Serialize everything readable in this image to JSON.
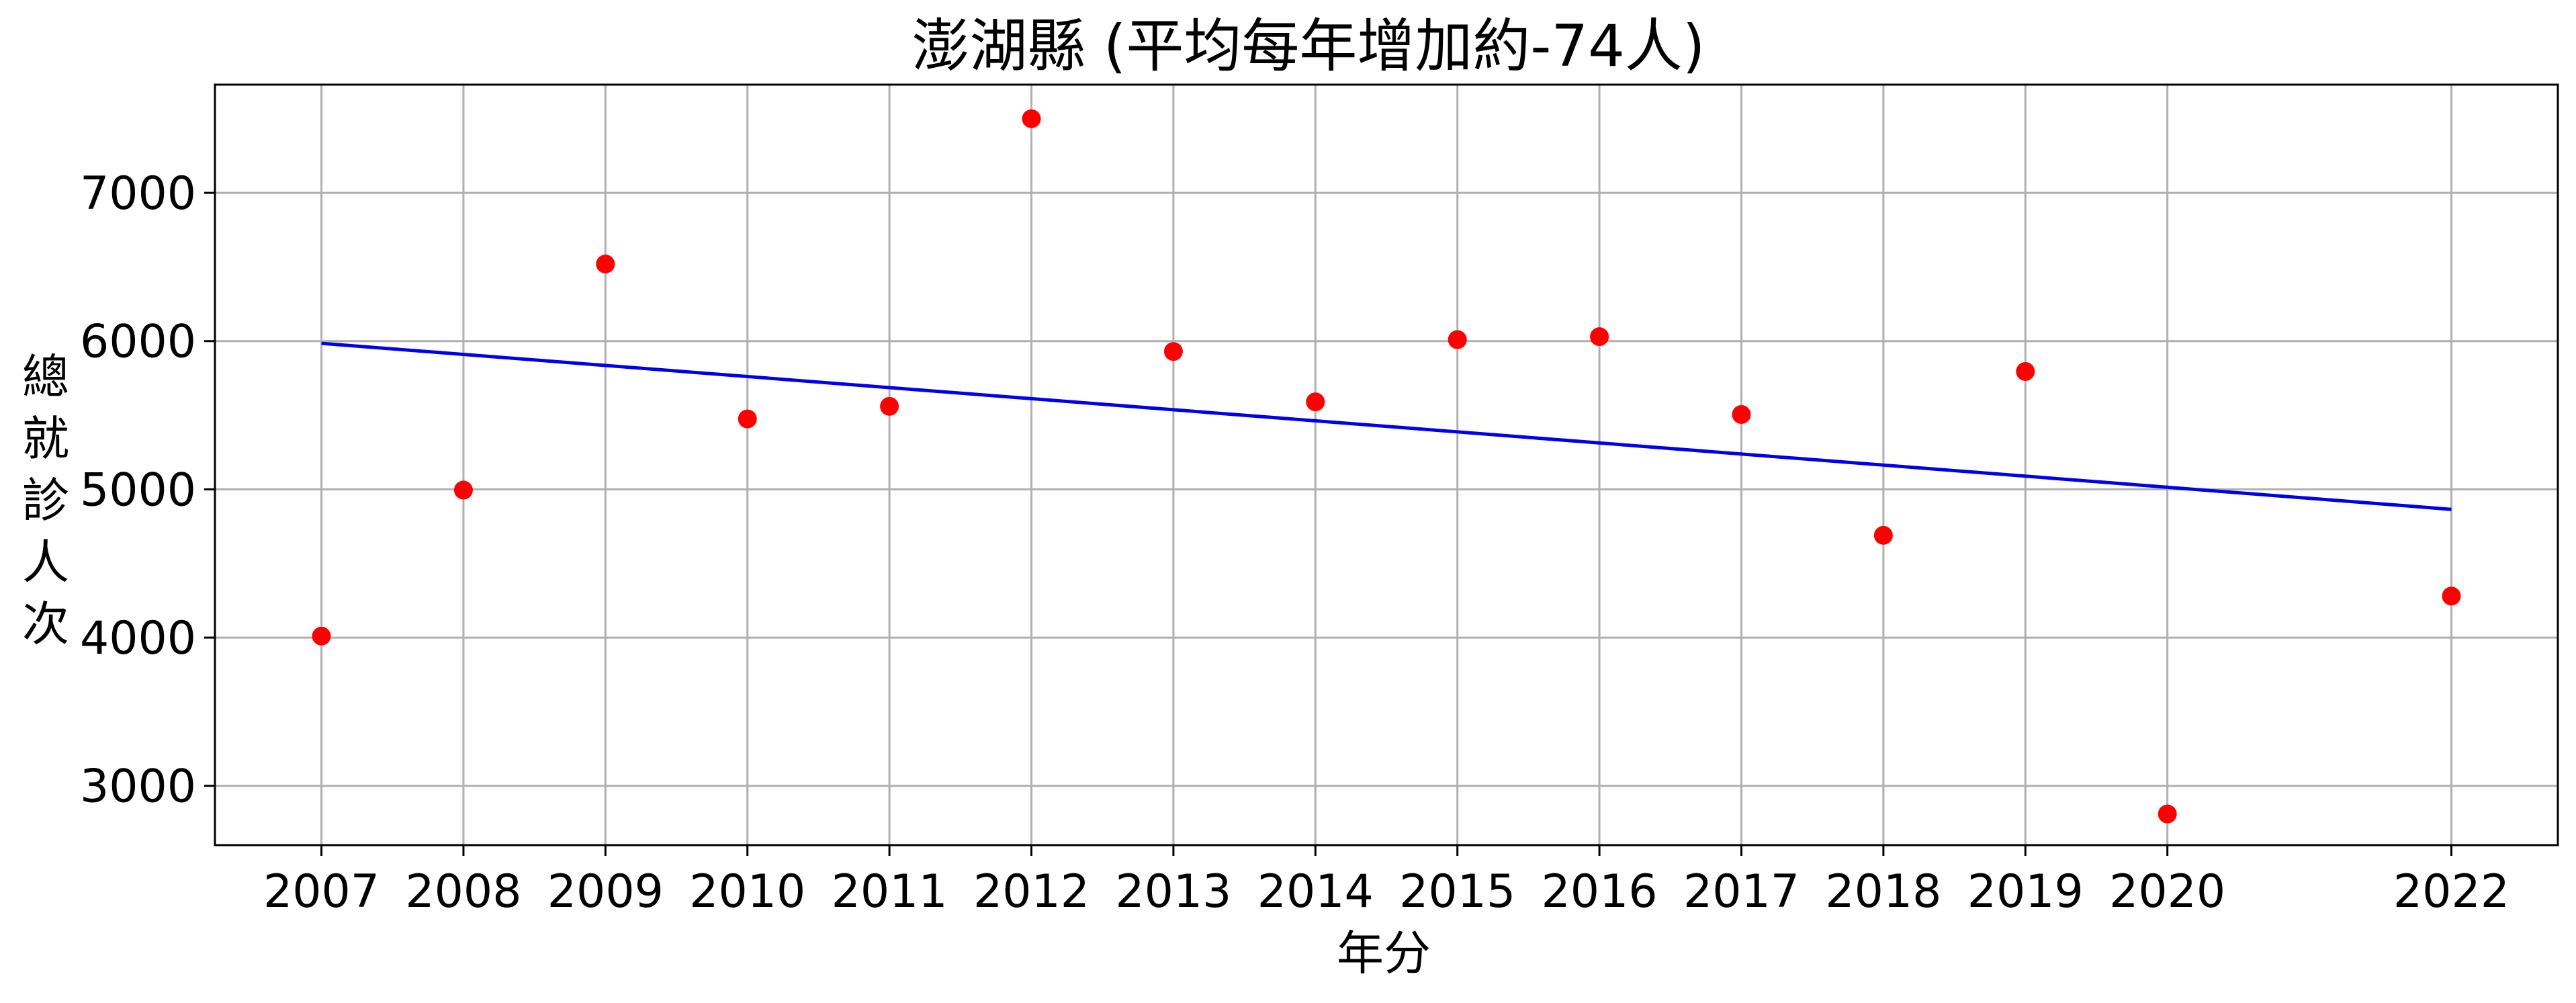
{
  "chart_data": {
    "type": "scatter",
    "title": "澎湖縣 (平均每年增加約-74人)",
    "xlabel": "年分",
    "ylabel": "總就診人次",
    "x": [
      2007,
      2008,
      2009,
      2010,
      2011,
      2012,
      2013,
      2014,
      2015,
      2016,
      2017,
      2018,
      2019,
      2020,
      2022
    ],
    "y": [
      4010,
      4995,
      6520,
      5475,
      5560,
      7500,
      5930,
      5590,
      6010,
      6030,
      5505,
      4690,
      5795,
      2810,
      4280
    ],
    "xticks": [
      "2007",
      "2008",
      "2009",
      "2010",
      "2011",
      "2012",
      "2013",
      "2014",
      "2015",
      "2016",
      "2017",
      "2018",
      "2019",
      "2020",
      "2022"
    ],
    "yticks": [
      "3000",
      "4000",
      "5000",
      "6000",
      "7000"
    ],
    "xlim": [
      2006.25,
      2022.75
    ],
    "ylim": [
      2600,
      7730
    ],
    "trendline": {
      "x": [
        2007,
        2022
      ],
      "y": [
        5985,
        4865
      ]
    },
    "grid": true,
    "colors": {
      "points": "#ff0000",
      "trend": "#0000ee",
      "grid": "#b0b0b0",
      "axes": "#000000"
    }
  }
}
